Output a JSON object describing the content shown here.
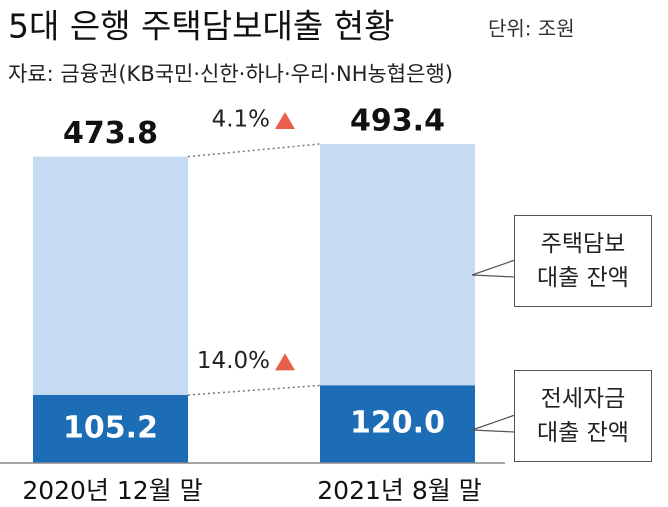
{
  "chart_data": {
    "type": "bar",
    "title": "5대 은행 주택담보대출 현황",
    "subtitle": "단위: 조원",
    "source": "자료: 금융권(KB국민·신한·하나·우리·NH농협은행)",
    "categories": [
      "2020년 12월 말",
      "2021년 8월 말"
    ],
    "series": [
      {
        "name": "주택담보 대출 잔액",
        "color": "#c6daf2",
        "values": [
          473.8,
          493.4
        ]
      },
      {
        "name": "전세자금 대출 잔액",
        "color": "#1c6db6",
        "values": [
          105.2,
          120.0
        ],
        "value_labels": [
          "105.2",
          "120.0"
        ]
      }
    ],
    "annotations": [
      "4.1%",
      "14.0%"
    ]
  }
}
